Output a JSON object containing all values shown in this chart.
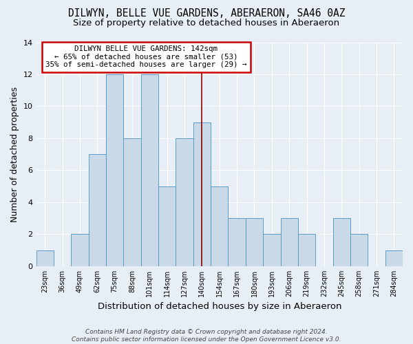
{
  "title": "DILWYN, BELLE VUE GARDENS, ABERAERON, SA46 0AZ",
  "subtitle": "Size of property relative to detached houses in Aberaeron",
  "xlabel": "Distribution of detached houses by size in Aberaeron",
  "ylabel": "Number of detached properties",
  "categories": [
    "23sqm",
    "36sqm",
    "49sqm",
    "62sqm",
    "75sqm",
    "88sqm",
    "101sqm",
    "114sqm",
    "127sqm",
    "140sqm",
    "154sqm",
    "167sqm",
    "180sqm",
    "193sqm",
    "206sqm",
    "219sqm",
    "232sqm",
    "245sqm",
    "258sqm",
    "271sqm",
    "284sqm"
  ],
  "values": [
    1,
    0,
    2,
    7,
    12,
    8,
    12,
    5,
    8,
    9,
    5,
    3,
    3,
    2,
    3,
    2,
    0,
    3,
    2,
    0,
    1
  ],
  "bar_color": "#c9d9e8",
  "bar_edge_color": "#5a9dc9",
  "vline_index": 9,
  "vline_color": "#8b0000",
  "ylim": [
    0,
    14
  ],
  "yticks": [
    0,
    2,
    4,
    6,
    8,
    10,
    12,
    14
  ],
  "annotation_text": "DILWYN BELLE VUE GARDENS: 142sqm\n← 65% of detached houses are smaller (53)\n35% of semi-detached houses are larger (29) →",
  "annotation_box_color": "#ffffff",
  "annotation_box_edge_color": "#cc0000",
  "footer_line1": "Contains HM Land Registry data © Crown copyright and database right 2024.",
  "footer_line2": "Contains public sector information licensed under the Open Government Licence v3.0.",
  "background_color": "#e8eef5",
  "title_fontsize": 10.5,
  "subtitle_fontsize": 9.5,
  "ylabel_fontsize": 9,
  "xlabel_fontsize": 9.5
}
